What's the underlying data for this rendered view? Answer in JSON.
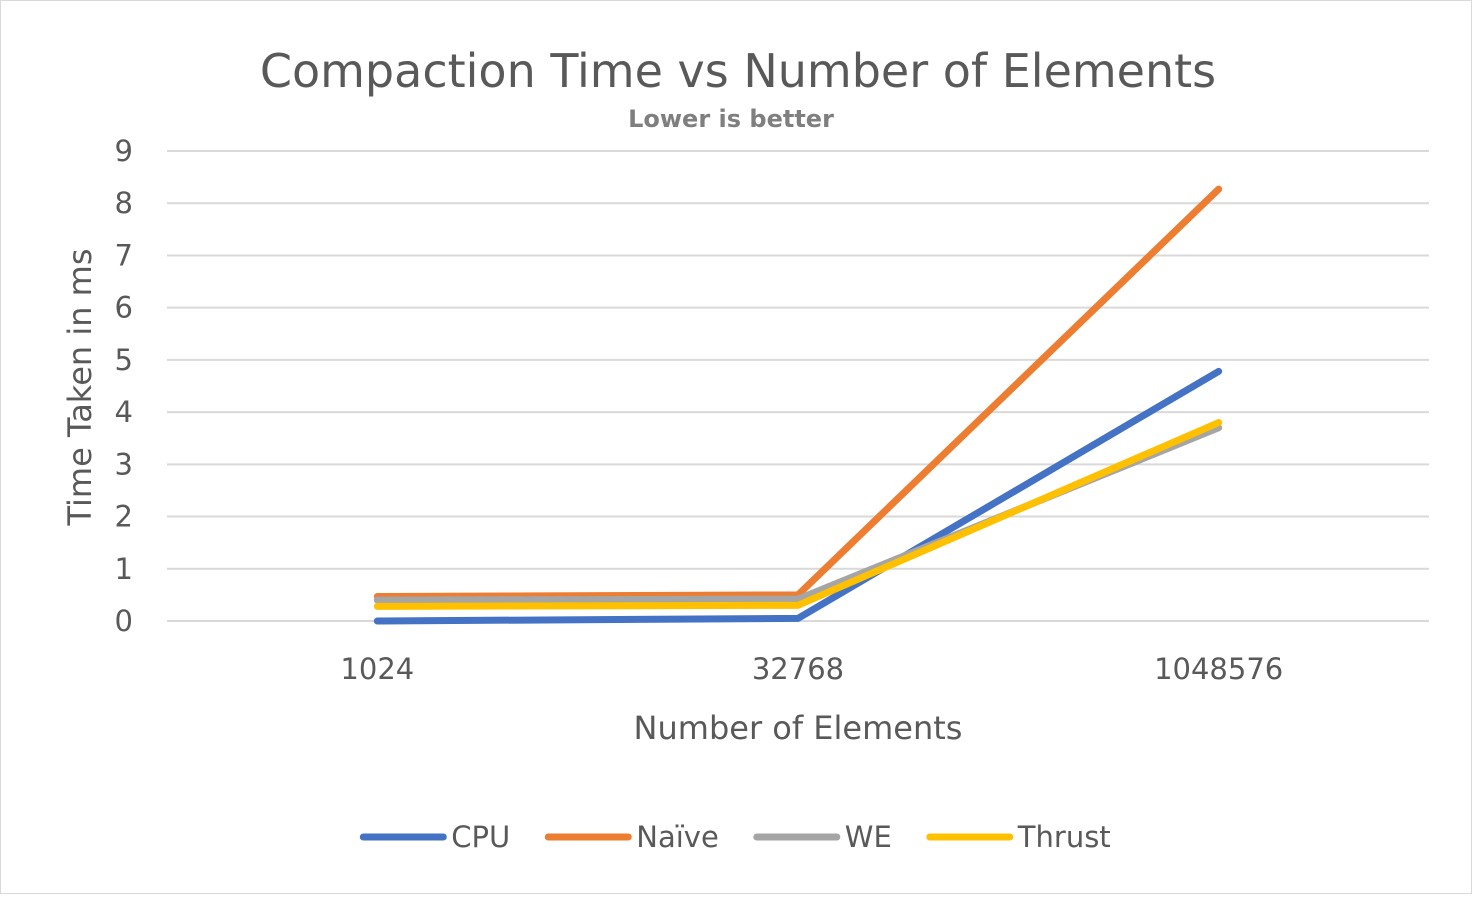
{
  "chart_data": {
    "type": "line",
    "title": "Compaction Time vs Number of Elements",
    "subtitle": "Lower is better",
    "xlabel": "Number of Elements",
    "ylabel": "Time Taken in ms",
    "categories": [
      "1024",
      "32768",
      "1048576"
    ],
    "ylim": [
      0,
      9
    ],
    "yticks": [
      0,
      1,
      2,
      3,
      4,
      5,
      6,
      7,
      8,
      9
    ],
    "grid": true,
    "legend_position": "bottom",
    "series": [
      {
        "name": "CPU",
        "color": "#4472c4",
        "values": [
          0.0,
          0.05,
          4.78
        ]
      },
      {
        "name": "Naïve",
        "color": "#ed7d31",
        "values": [
          0.47,
          0.5,
          8.27
        ]
      },
      {
        "name": "WE",
        "color": "#a5a5a5",
        "values": [
          0.4,
          0.42,
          3.7
        ]
      },
      {
        "name": "Thrust",
        "color": "#ffc000",
        "values": [
          0.28,
          0.3,
          3.8
        ]
      }
    ]
  }
}
